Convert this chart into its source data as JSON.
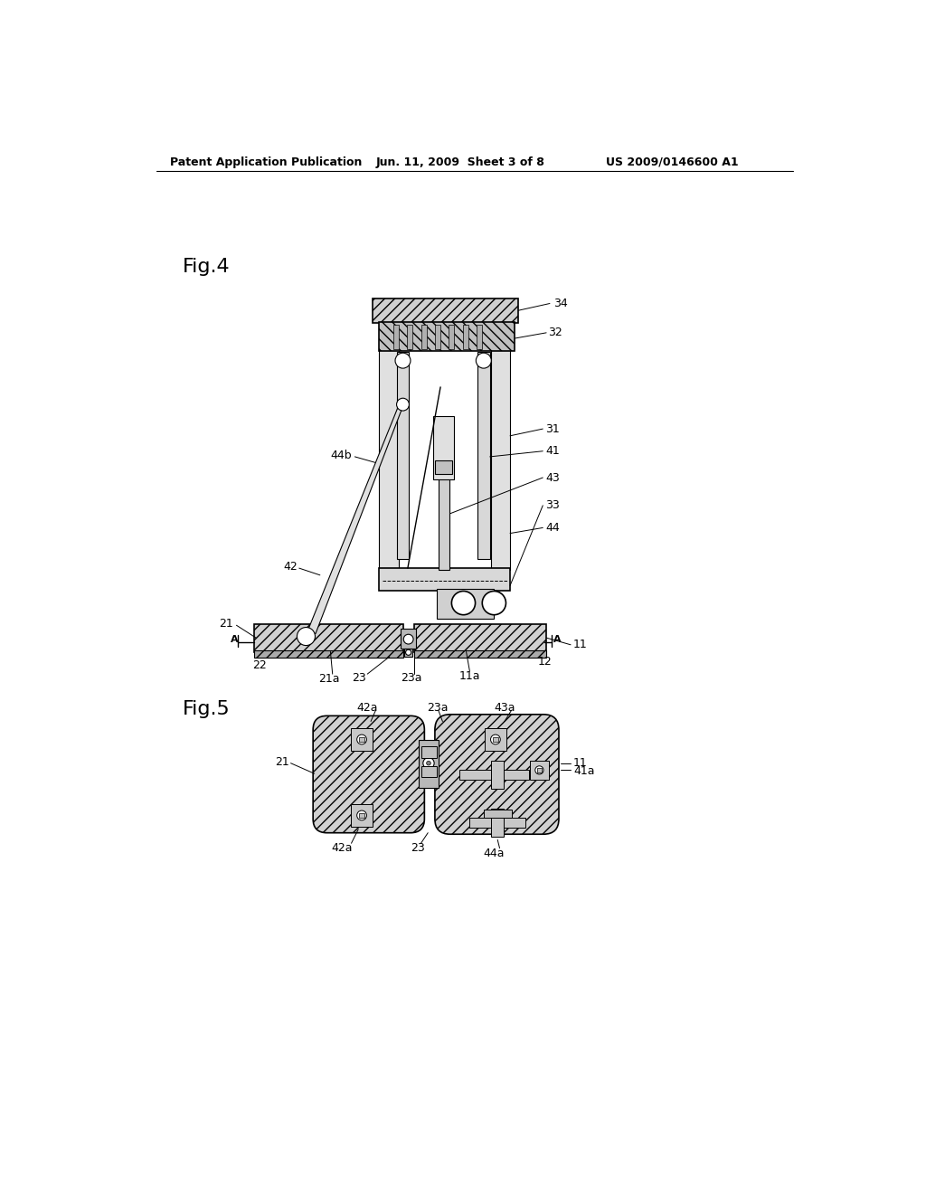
{
  "background_color": "#ffffff",
  "header_text": "Patent Application Publication",
  "header_date": "Jun. 11, 2009  Sheet 3 of 8",
  "header_patent": "US 2009/0146600 A1",
  "fig4_label": "Fig.4",
  "fig5_label": "Fig.5",
  "line_color": "#000000",
  "fill_light": "#e8e8e8",
  "fill_medium": "#d0d0d0",
  "fill_dark": "#b0b0b0",
  "fill_hatch": "#c8c8c8"
}
